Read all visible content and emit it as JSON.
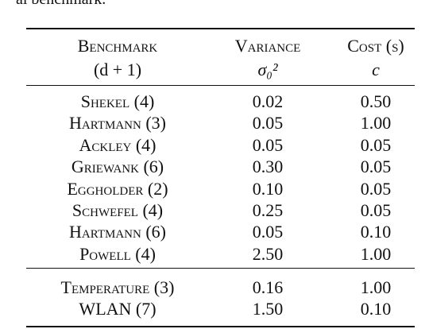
{
  "caption": "al benchmark.",
  "table": {
    "header": [
      [
        "Benchmark",
        "Variance",
        "Cost (s)"
      ],
      [
        "(d + 1)",
        "σ₀²",
        "c"
      ]
    ],
    "groups": [
      [
        [
          "Shekel (4)",
          "0.02",
          "0.50"
        ],
        [
          "Hartmann (3)",
          "0.05",
          "1.00"
        ],
        [
          "Ackley (4)",
          "0.05",
          "0.05"
        ],
        [
          "Griewank (6)",
          "0.30",
          "0.05"
        ],
        [
          "Eggholder (2)",
          "0.10",
          "0.05"
        ],
        [
          "Schwefel (4)",
          "0.25",
          "0.05"
        ],
        [
          "Hartmann (6)",
          "0.05",
          "0.10"
        ],
        [
          "Powell (4)",
          "2.50",
          "1.00"
        ]
      ],
      [
        [
          "Temperature (3)",
          "0.16",
          "1.00"
        ],
        [
          "WLAN (7)",
          "1.50",
          "0.10"
        ]
      ]
    ]
  }
}
